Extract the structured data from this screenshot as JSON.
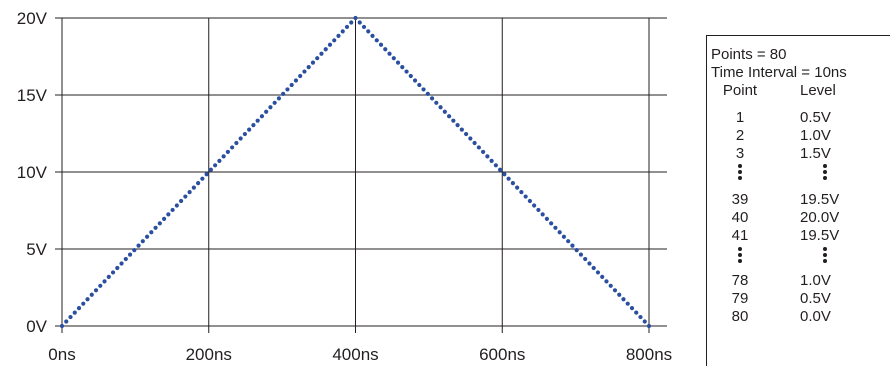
{
  "chart_data": {
    "type": "line",
    "x_unit": "ns",
    "x": [
      0,
      400,
      800
    ],
    "y": [
      0,
      20,
      0
    ],
    "marker_style": "dotted",
    "xlim": [
      0,
      800
    ],
    "ylim": [
      0,
      20
    ],
    "xticks": [
      0,
      200,
      400,
      600,
      800
    ],
    "yticks": [
      0,
      5,
      10,
      15,
      20
    ],
    "xtick_labels": [
      "0ns",
      "200ns",
      "400ns",
      "600ns",
      "800ns"
    ],
    "ytick_labels": [
      "0V",
      "5V",
      "10V",
      "15V",
      "20V"
    ],
    "grid": true,
    "series_color": "#2a4fa0",
    "title": "",
    "xlabel": "",
    "ylabel": ""
  },
  "table": {
    "points_text": "Points = 80",
    "interval_text": "Time Interval = 10ns",
    "headers": {
      "point": "Point",
      "level": "Level"
    },
    "rows_top": [
      {
        "point": "1",
        "level": "0.5V"
      },
      {
        "point": "2",
        "level": "1.0V"
      },
      {
        "point": "3",
        "level": "1.5V"
      }
    ],
    "rows_mid": [
      {
        "point": "39",
        "level": "19.5V"
      },
      {
        "point": "40",
        "level": "20.0V"
      },
      {
        "point": "41",
        "level": "19.5V"
      }
    ],
    "rows_bottom": [
      {
        "point": "78",
        "level": "1.0V"
      },
      {
        "point": "79",
        "level": "0.5V"
      },
      {
        "point": "80",
        "level": "0.0V"
      }
    ]
  }
}
